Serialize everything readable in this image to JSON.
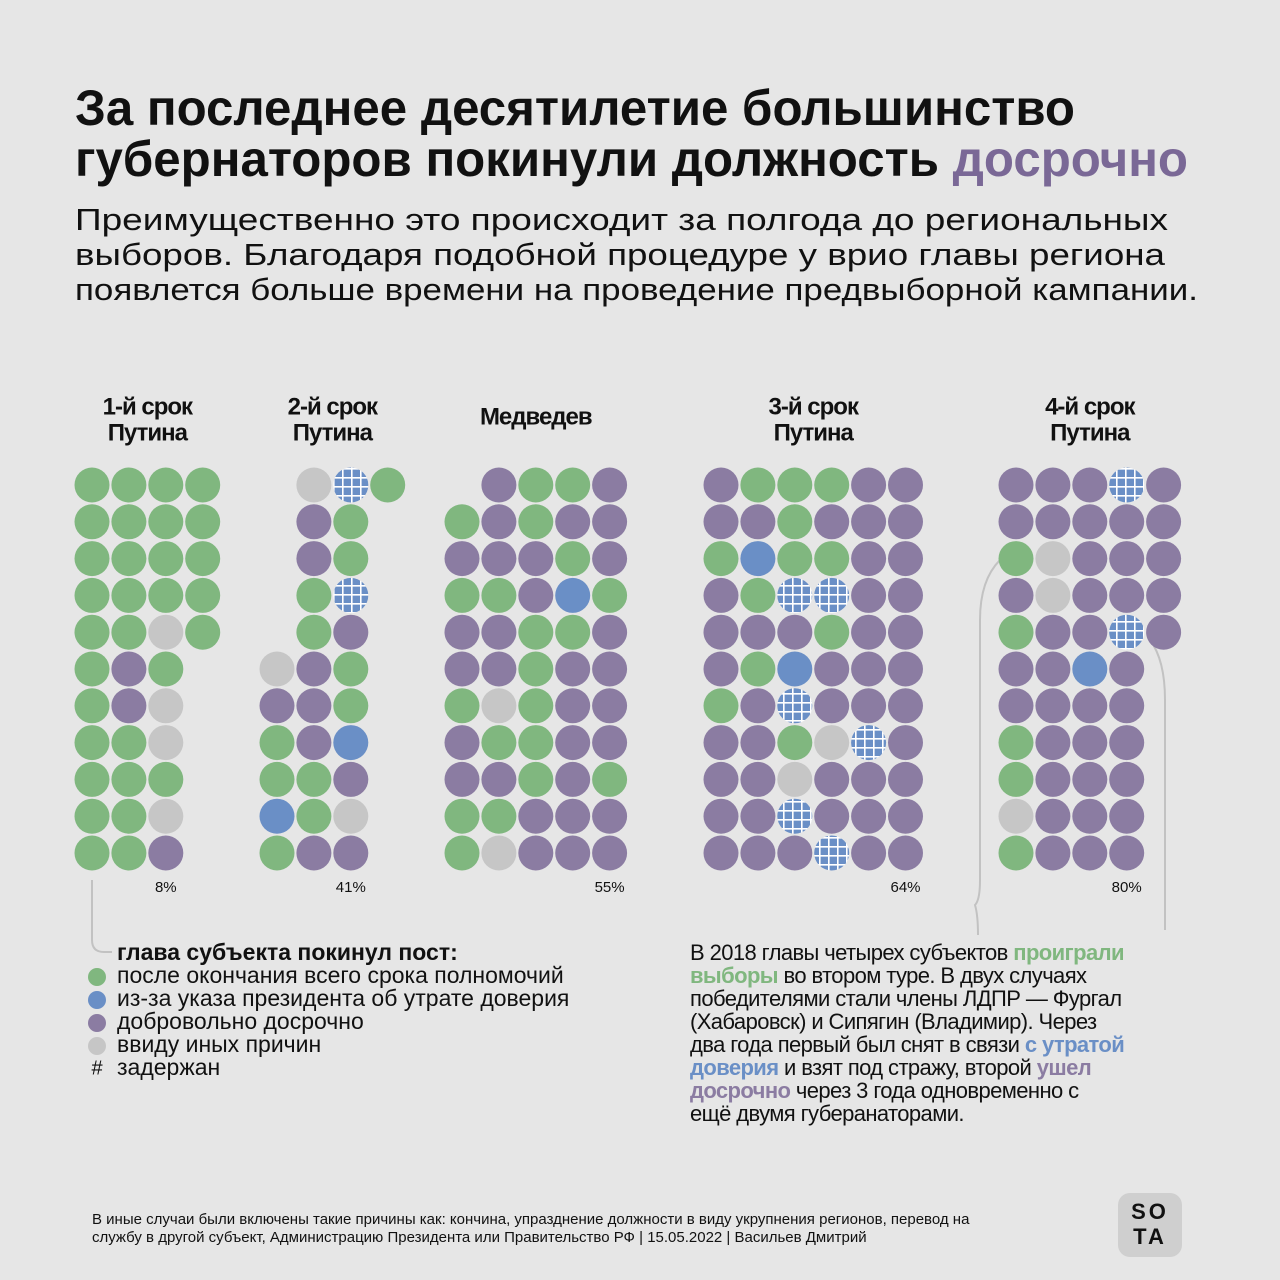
{
  "title": {
    "line1": "За последнее десятилетие большинство",
    "line2": "губернаторов покинули должность ",
    "accent": "досрочно"
  },
  "subtitle": [
    "Преимущественно это происходит за полгода до региональных",
    "выборов. Благодаря подобной процедуре у врио главы региона",
    "появлется больше времени на проведение предвыборной кампании."
  ],
  "legend": {
    "heading": "глава субъекта покинул пост:",
    "items": [
      {
        "label": "после окончания всего срока полномочий",
        "color": "#80b77f"
      },
      {
        "label": "из-за указа президента об утрате доверия",
        "color": "#6a8fc6"
      },
      {
        "label": "добровольно досрочно",
        "color": "#8b7ca2"
      },
      {
        "label": "ввиду иных причин",
        "color": "#c6c6c6"
      },
      {
        "label": "задержан",
        "color": "#6a8fc6",
        "marker": "#"
      }
    ]
  },
  "groups": [
    {
      "header": [
        "1-й срок",
        "Путина"
      ],
      "share": "8%",
      "rows": [
        [
          0,
          0,
          0,
          0
        ],
        [
          0,
          0,
          0,
          0
        ],
        [
          0,
          0,
          0,
          0
        ],
        [
          0,
          0,
          0,
          0
        ],
        [
          0,
          0,
          3,
          0
        ],
        [
          0,
          2,
          0,
          null
        ],
        [
          0,
          2,
          3,
          null
        ],
        [
          0,
          0,
          3,
          null
        ],
        [
          0,
          0,
          0,
          null
        ],
        [
          0,
          0,
          3,
          null
        ],
        [
          0,
          0,
          2,
          null
        ]
      ]
    },
    {
      "header": [
        "2-й срок",
        "Путина"
      ],
      "share": "41%",
      "rows": [
        [
          null,
          3,
          4,
          0
        ],
        [
          null,
          2,
          0,
          null
        ],
        [
          null,
          2,
          0,
          null
        ],
        [
          null,
          0,
          4,
          null
        ],
        [
          null,
          0,
          2,
          null
        ],
        [
          3,
          2,
          0,
          null
        ],
        [
          2,
          2,
          0,
          null
        ],
        [
          0,
          2,
          1,
          null
        ],
        [
          0,
          0,
          2,
          null
        ],
        [
          1,
          0,
          3,
          null
        ],
        [
          0,
          2,
          2,
          null
        ]
      ]
    },
    {
      "header": [
        "Медведев"
      ],
      "share": "55%",
      "rows": [
        [
          null,
          2,
          0,
          0,
          2
        ],
        [
          0,
          2,
          0,
          2,
          2
        ],
        [
          2,
          2,
          2,
          0,
          2
        ],
        [
          0,
          0,
          2,
          1,
          0
        ],
        [
          2,
          2,
          0,
          0,
          2
        ],
        [
          2,
          2,
          0,
          2,
          2
        ],
        [
          0,
          3,
          0,
          2,
          2
        ],
        [
          2,
          0,
          0,
          2,
          2
        ],
        [
          2,
          2,
          0,
          2,
          0
        ],
        [
          0,
          0,
          2,
          2,
          2
        ],
        [
          0,
          3,
          2,
          2,
          2
        ]
      ]
    },
    {
      "header": [
        "3-й срок",
        "Путина"
      ],
      "share": "64%",
      "rows": [
        [
          2,
          0,
          0,
          0,
          2,
          2
        ],
        [
          2,
          2,
          0,
          2,
          2,
          2
        ],
        [
          0,
          1,
          0,
          0,
          2,
          2
        ],
        [
          2,
          0,
          4,
          4,
          2,
          2
        ],
        [
          2,
          2,
          2,
          0,
          2,
          2
        ],
        [
          2,
          0,
          1,
          2,
          2,
          2
        ],
        [
          0,
          2,
          4,
          2,
          2,
          2
        ],
        [
          2,
          2,
          0,
          3,
          4,
          2
        ],
        [
          2,
          2,
          3,
          2,
          2,
          2
        ],
        [
          2,
          2,
          4,
          2,
          2,
          2
        ],
        [
          2,
          2,
          2,
          4,
          2,
          2
        ]
      ]
    },
    {
      "header": [
        "4-й срок",
        "Путина"
      ],
      "share": "80%",
      "rows": [
        [
          2,
          2,
          2,
          4,
          2
        ],
        [
          2,
          2,
          2,
          2,
          2
        ],
        [
          0,
          3,
          2,
          2,
          2
        ],
        [
          2,
          3,
          2,
          2,
          2
        ],
        [
          0,
          2,
          2,
          4,
          2
        ],
        [
          2,
          2,
          1,
          2,
          null
        ],
        [
          2,
          2,
          2,
          2,
          null
        ],
        [
          0,
          2,
          2,
          2,
          null
        ],
        [
          0,
          2,
          2,
          2,
          null
        ],
        [
          3,
          2,
          2,
          2,
          null
        ],
        [
          0,
          2,
          2,
          2,
          null
        ]
      ]
    }
  ],
  "note": [
    [
      {
        "text": "В 2018 главы четырех субъектов "
      },
      {
        "text": "проиграли",
        "color": "#80b77f"
      }
    ],
    [
      {
        "text": "выборы",
        "color": "#80b77f"
      },
      {
        "text": " во втором туре. В двух случаях"
      }
    ],
    [
      {
        "text": "победителями стали члены ЛДПР — Фургал"
      }
    ],
    [
      {
        "text": "(Хабаровск) и Сипягин (Владимир). Через"
      }
    ],
    [
      {
        "text": "два года первый был снят в связи "
      },
      {
        "text": "с утратой",
        "color": "#6a8fc6"
      }
    ],
    [
      {
        "text": "доверия",
        "color": "#6a8fc6"
      },
      {
        "text": " и взят под стражу, второй "
      },
      {
        "text": "ушел",
        "color": "#8b7ca2"
      }
    ],
    [
      {
        "text": "досрочно",
        "color": "#8b7ca2"
      },
      {
        "text": " через 3 года одновременно с"
      }
    ],
    [
      {
        "text": "ещё двумя губеранаторами."
      }
    ]
  ],
  "footer": [
    "В иные случаи были включены такие причины как: кончина, упразднение должности в виду укрупнения регионов, перевод на",
    "службу в другой субъект, Администрацию Президента или Правительство РФ | 15.05.2022 | Васильев Дмитрий"
  ],
  "logo": [
    "SO",
    "TA"
  ]
}
